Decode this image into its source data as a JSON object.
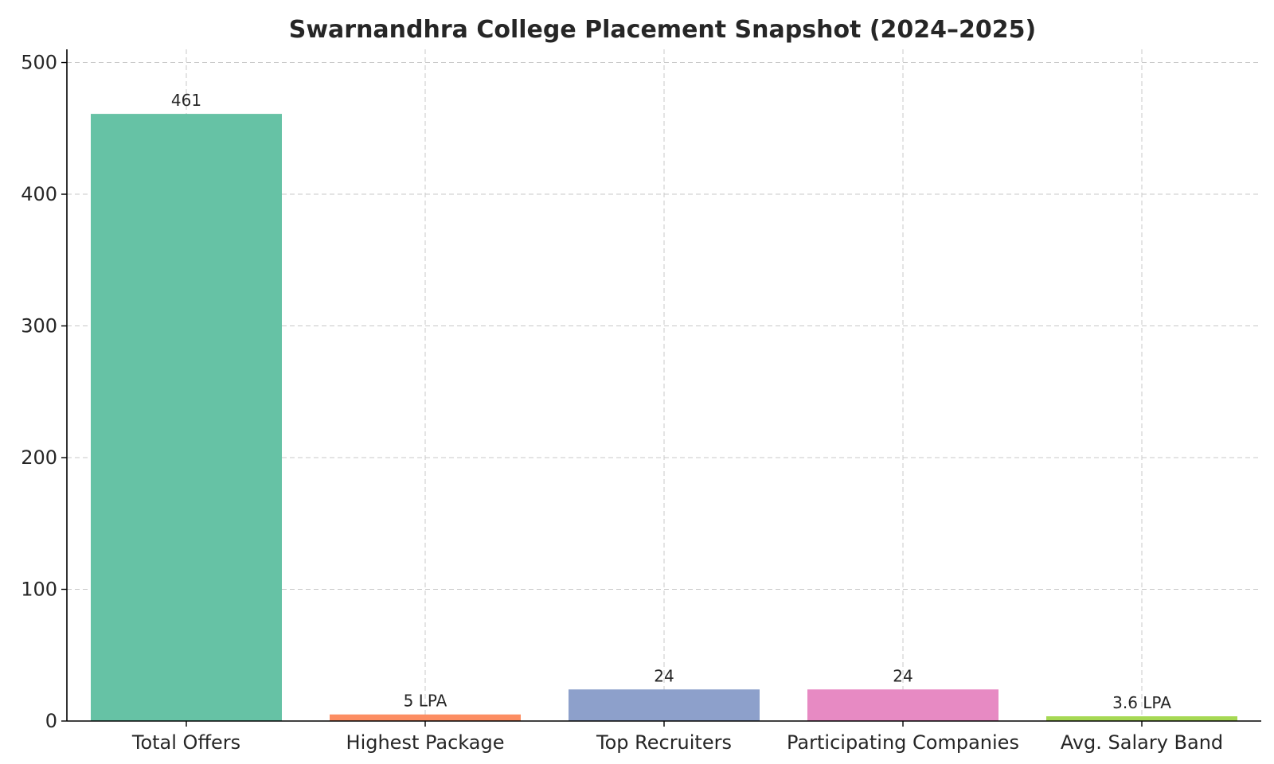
{
  "chart_data": {
    "type": "bar",
    "title": "Swarnandhra College Placement Snapshot (2024–2025)",
    "xlabel": "",
    "ylabel": "",
    "categories": [
      "Total Offers",
      "Highest Package",
      "Top Recruiters",
      "Participating Companies",
      "Avg. Salary Band"
    ],
    "values": [
      461,
      5,
      24,
      24,
      3.6
    ],
    "data_labels": [
      "461",
      "5 LPA",
      "24",
      "24",
      "3.6 LPA"
    ],
    "colors": [
      "#66c2a5",
      "#fc8d62",
      "#8da0cb",
      "#e78ac3",
      "#a6d854"
    ],
    "ylim": [
      0,
      510
    ],
    "yticks": [
      0,
      100,
      200,
      300,
      400,
      500
    ],
    "grid": true,
    "legend": "none"
  }
}
